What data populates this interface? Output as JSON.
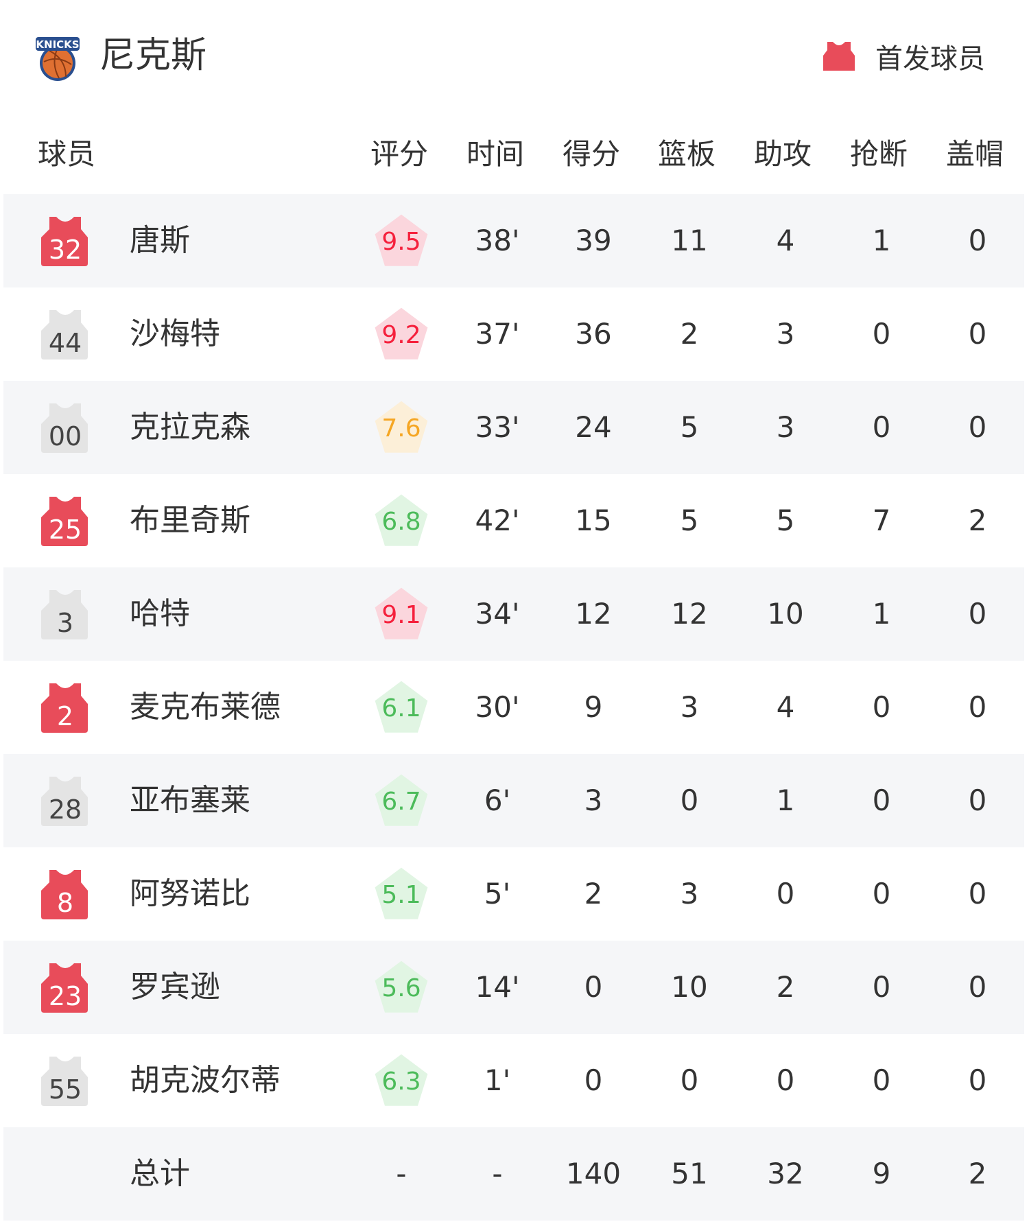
{
  "header": {
    "team_name": "尼克斯",
    "logo_text": "KNICKS",
    "legend_label": "首发球员",
    "legend_icon": "jersey-icon"
  },
  "columns": [
    "球员",
    "评分",
    "时间",
    "得分",
    "篮板",
    "助攻",
    "抢断",
    "盖帽"
  ],
  "colors": {
    "starter": "#e84c5a",
    "bench": "#e4e4e4",
    "rating_red": "#f5203c",
    "rating_red_bg": "#fbd6dd",
    "rating_orange": "#f5a623",
    "rating_orange_bg": "#fcefd8",
    "rating_green": "#4cbb5a",
    "rating_green_bg": "#e1f5e3"
  },
  "players": [
    {
      "number": "32",
      "name": "唐斯",
      "starter": true,
      "rating": "9.5",
      "tier": "red",
      "min": "38'",
      "pts": "39",
      "reb": "11",
      "ast": "4",
      "stl": "1",
      "blk": "0"
    },
    {
      "number": "44",
      "name": "沙梅特",
      "starter": false,
      "rating": "9.2",
      "tier": "red",
      "min": "37'",
      "pts": "36",
      "reb": "2",
      "ast": "3",
      "stl": "0",
      "blk": "0"
    },
    {
      "number": "00",
      "name": "克拉克森",
      "starter": false,
      "rating": "7.6",
      "tier": "orange",
      "min": "33'",
      "pts": "24",
      "reb": "5",
      "ast": "3",
      "stl": "0",
      "blk": "0"
    },
    {
      "number": "25",
      "name": "布里奇斯",
      "starter": true,
      "rating": "6.8",
      "tier": "green",
      "min": "42'",
      "pts": "15",
      "reb": "5",
      "ast": "5",
      "stl": "7",
      "blk": "2"
    },
    {
      "number": "3",
      "name": "哈特",
      "starter": false,
      "rating": "9.1",
      "tier": "red",
      "min": "34'",
      "pts": "12",
      "reb": "12",
      "ast": "10",
      "stl": "1",
      "blk": "0"
    },
    {
      "number": "2",
      "name": "麦克布莱德",
      "starter": true,
      "rating": "6.1",
      "tier": "green",
      "min": "30'",
      "pts": "9",
      "reb": "3",
      "ast": "4",
      "stl": "0",
      "blk": "0"
    },
    {
      "number": "28",
      "name": "亚布塞莱",
      "starter": false,
      "rating": "6.7",
      "tier": "green",
      "min": "6'",
      "pts": "3",
      "reb": "0",
      "ast": "1",
      "stl": "0",
      "blk": "0"
    },
    {
      "number": "8",
      "name": "阿努诺比",
      "starter": true,
      "rating": "5.1",
      "tier": "green",
      "min": "5'",
      "pts": "2",
      "reb": "3",
      "ast": "0",
      "stl": "0",
      "blk": "0"
    },
    {
      "number": "23",
      "name": "罗宾逊",
      "starter": true,
      "rating": "5.6",
      "tier": "green",
      "min": "14'",
      "pts": "0",
      "reb": "10",
      "ast": "2",
      "stl": "0",
      "blk": "0"
    },
    {
      "number": "55",
      "name": "胡克波尔蒂",
      "starter": false,
      "rating": "6.3",
      "tier": "green",
      "min": "1'",
      "pts": "0",
      "reb": "0",
      "ast": "0",
      "stl": "0",
      "blk": "0"
    }
  ],
  "totals": {
    "label": "总计",
    "rating": "-",
    "min": "-",
    "pts": "140",
    "reb": "51",
    "ast": "32",
    "stl": "9",
    "blk": "2"
  }
}
